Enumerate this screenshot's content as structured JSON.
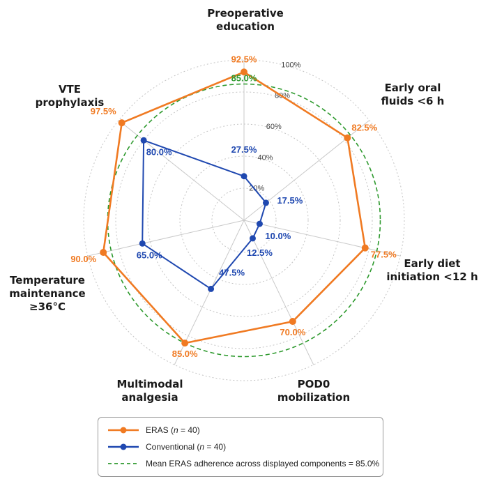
{
  "chart_data": {
    "type": "radar",
    "categories": [
      "Preoperative education",
      "Early oral fluids <6 h",
      "Early diet initiation <12 h",
      "POD0 mobilization",
      "Multimodal analgesia",
      "Temperature maintenance ≥36°C",
      "VTE prophylaxis"
    ],
    "category_label_lines": [
      [
        "Preoperative",
        "education"
      ],
      [
        "Early oral",
        "fluids <6 h"
      ],
      [
        "Early diet",
        "initiation <12 h"
      ],
      [
        "POD0",
        "mobilization"
      ],
      [
        "Multimodal",
        "analgesia"
      ],
      [
        "Temperature",
        "maintenance",
        "≥36°C"
      ],
      [
        "VTE",
        "prophylaxis"
      ]
    ],
    "series": [
      {
        "name": "ERAS (n = 40)",
        "color": "#F07A22",
        "values": [
          92.5,
          82.5,
          77.5,
          70.0,
          85.0,
          90.0,
          97.5
        ],
        "value_labels": [
          "92.5%",
          "82.5%",
          "77.5%",
          "70.0%",
          "85.0%",
          "90.0%",
          "97.5%"
        ]
      },
      {
        "name": "Conventional (n = 40)",
        "color": "#1F48B0",
        "values": [
          27.5,
          17.5,
          10.0,
          12.5,
          47.5,
          65.0,
          80.0
        ],
        "value_labels": [
          "27.5%",
          "17.5%",
          "10.0%",
          "12.5%",
          "47.5%",
          "65.0%",
          "80.0%"
        ]
      }
    ],
    "reference_line": {
      "name": "Mean ERAS adherence across displayed components = 85.0%",
      "value": 85.0,
      "label": "85.0%",
      "color": "#2E9A2E",
      "style": "dashed"
    },
    "radial_ticks": [
      20,
      40,
      60,
      80,
      100
    ],
    "radial_tick_labels": [
      "20%",
      "40%",
      "60%",
      "80%",
      "100%"
    ],
    "range": [
      0,
      100
    ],
    "grid": true,
    "legend_position": "bottom"
  },
  "legend": {
    "eras_prefix": "ERAS (",
    "eras_n": "n",
    "eras_suffix": " = 40)",
    "conv_prefix": "Conventional (",
    "conv_n": "n",
    "conv_suffix": " = 40)",
    "mean_text": "Mean ERAS adherence across displayed components = 85.0%"
  }
}
